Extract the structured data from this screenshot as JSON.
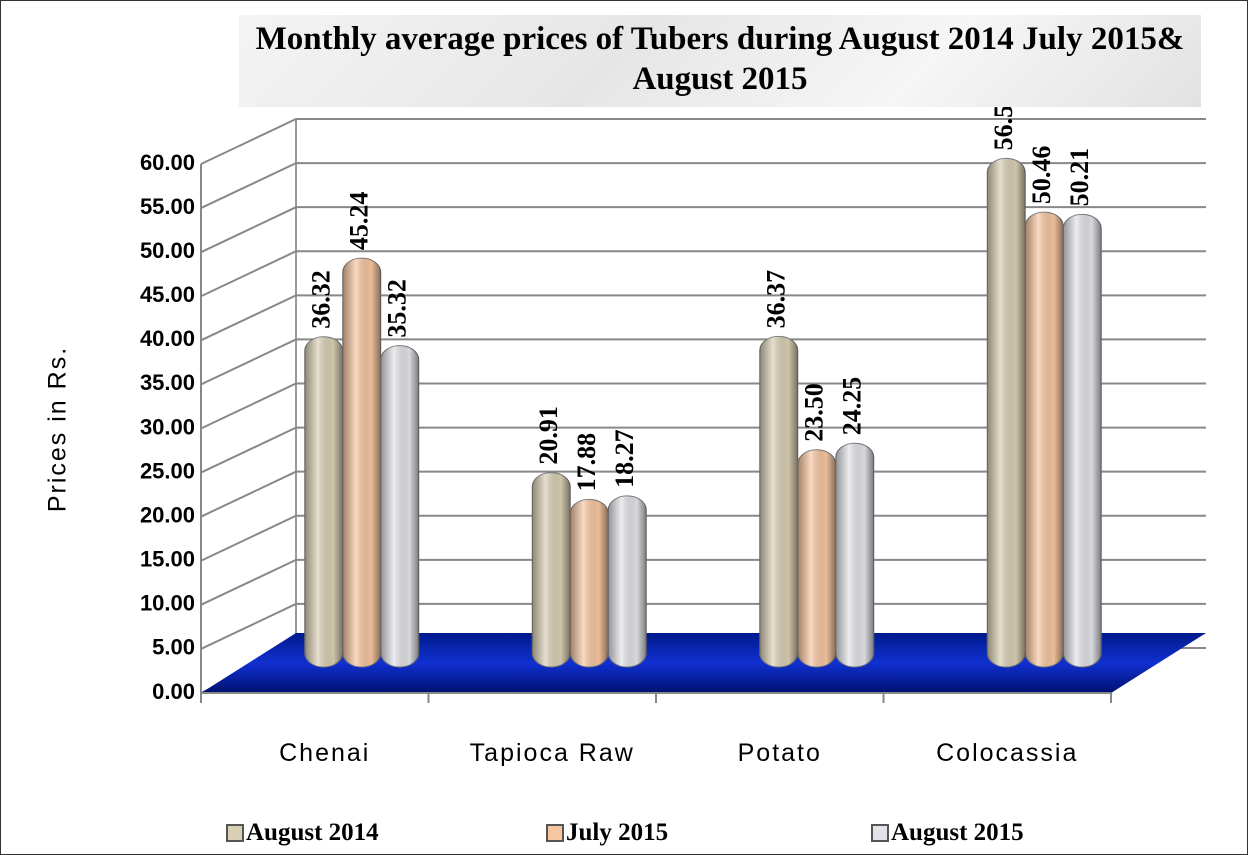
{
  "chart_data": {
    "type": "bar",
    "title": "Monthly average prices of Tubers during August  2014 July 2015& August  2015",
    "y_label": "Prices in Rs.",
    "categories": [
      "Chenai",
      "Tapioca Raw",
      "Potato",
      "Colocassia"
    ],
    "series": [
      {
        "name": "August 2014",
        "color": "#d9cfb4",
        "values": [
          36.32,
          20.91,
          36.37,
          56.56
        ],
        "value_labels": [
          "36.32",
          "20.91",
          "36.37",
          "56.56"
        ]
      },
      {
        "name": "July 2015",
        "color": "#f7c6a0",
        "values": [
          45.24,
          17.88,
          23.5,
          50.46
        ],
        "value_labels": [
          "45.24",
          "17.88",
          "23.50",
          "50.46"
        ]
      },
      {
        "name": "August 2015",
        "color": "#e2e3e8",
        "values": [
          35.32,
          18.27,
          24.25,
          50.21
        ],
        "value_labels": [
          "35.32",
          "18.27",
          "24.25",
          "50.21"
        ]
      }
    ],
    "ylim": [
      0,
      60
    ],
    "yticks": [
      {
        "value": 0,
        "label": "0.00"
      },
      {
        "value": 5,
        "label": "5.00"
      },
      {
        "value": 10,
        "label": "10.00"
      },
      {
        "value": 15,
        "label": "15.00"
      },
      {
        "value": 20,
        "label": "20.00"
      },
      {
        "value": 25,
        "label": "25.00"
      },
      {
        "value": 30,
        "label": "30.00"
      },
      {
        "value": 35,
        "label": "35.00"
      },
      {
        "value": 40,
        "label": "40.00"
      },
      {
        "value": 45,
        "label": "45.00"
      },
      {
        "value": 50,
        "label": "50.00"
      },
      {
        "value": 55,
        "label": "55.00"
      },
      {
        "value": 60,
        "label": "60.00"
      }
    ],
    "grid": true,
    "legend": "bottom"
  }
}
